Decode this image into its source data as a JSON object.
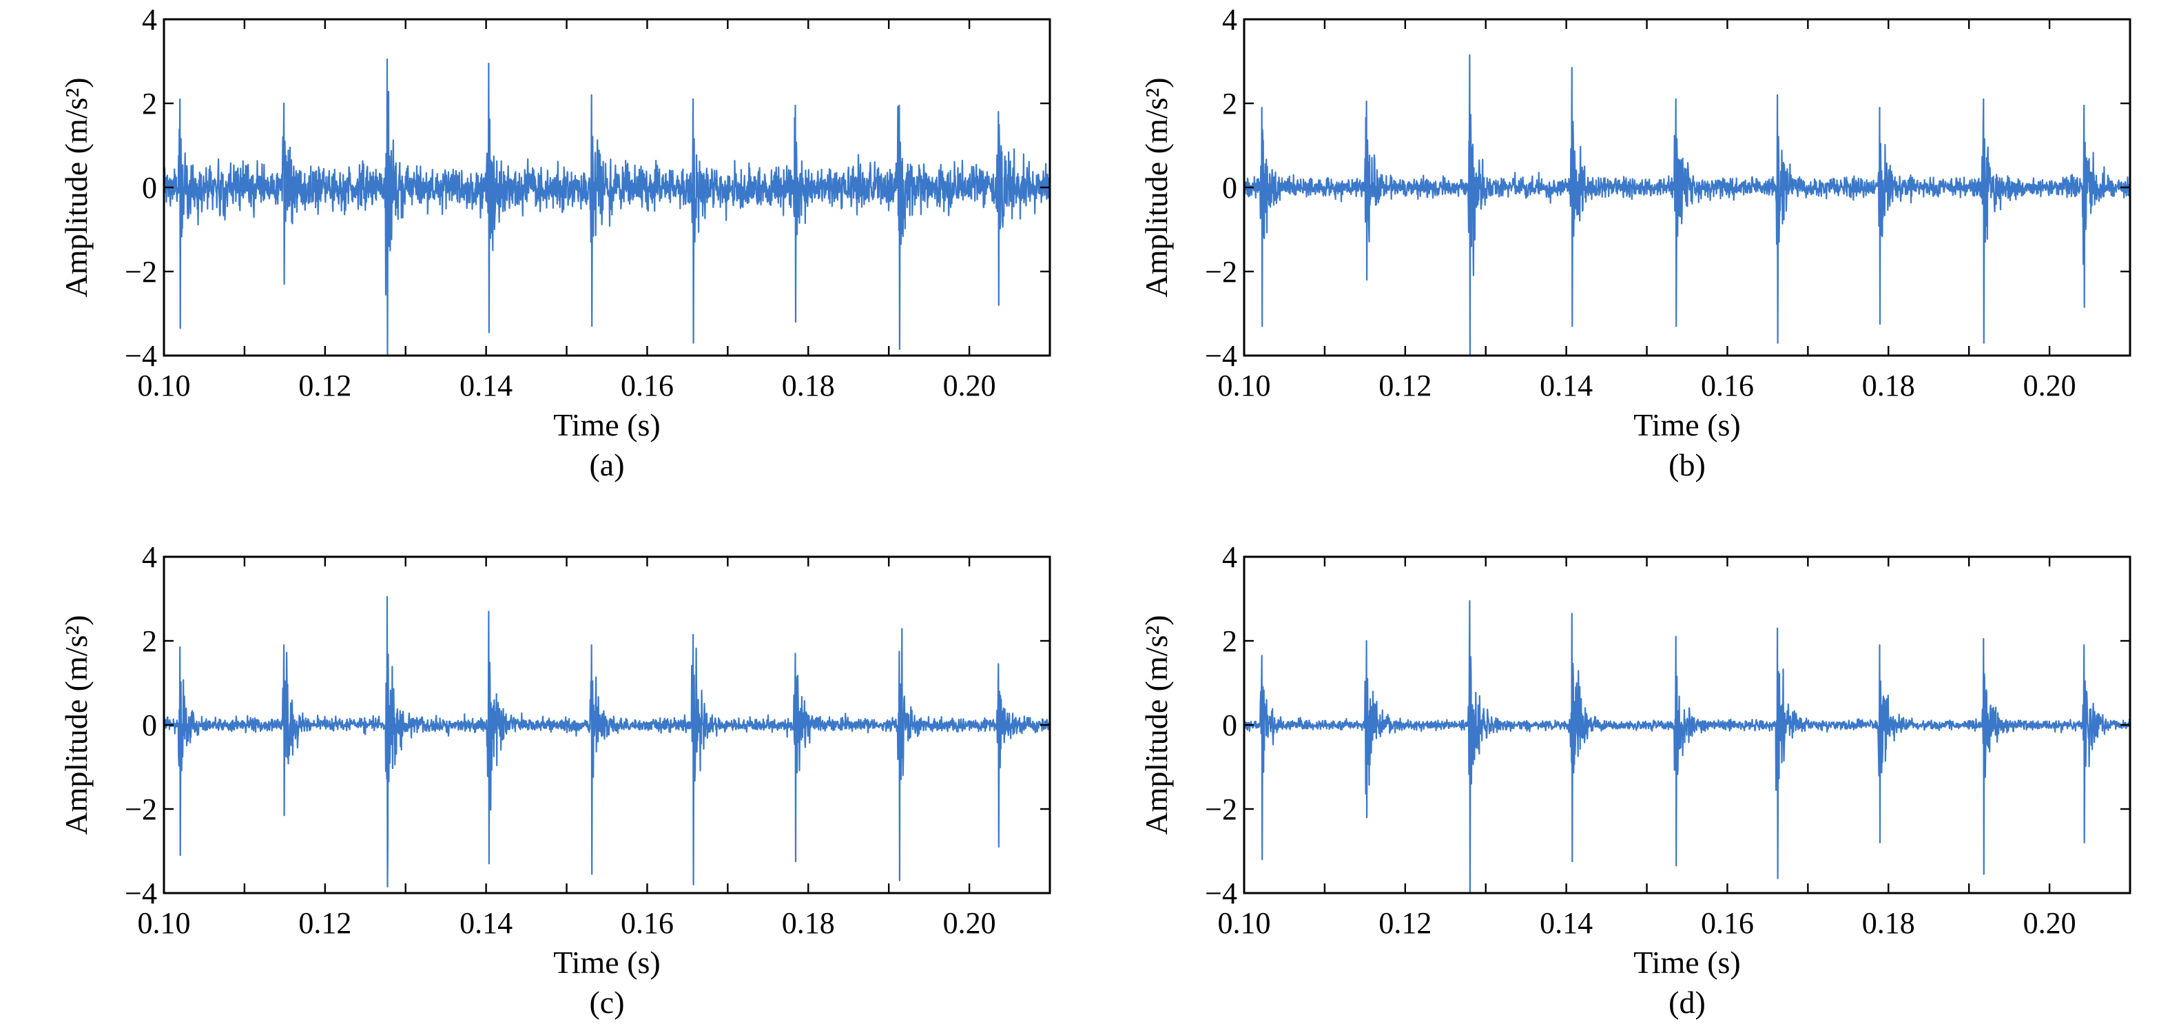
{
  "colors": {
    "signal": "#3b78c9",
    "axes": "#000000",
    "background": "#ffffff"
  },
  "chart_data": [
    {
      "type": "line",
      "panel_label": "(a)",
      "xlabel": "Time (s)",
      "ylabel": "Amplitude (m/s²)",
      "xlim": [
        0.1,
        0.21
      ],
      "ylim": [
        -4,
        4
      ],
      "xticks": [
        0.1,
        0.12,
        0.14,
        0.16,
        0.18,
        0.2
      ],
      "xticklabels": [
        "0.10",
        "0.12",
        "0.14",
        "0.16",
        "0.18",
        "0.20"
      ],
      "yticks": [
        -4,
        -2,
        0,
        2,
        4
      ],
      "yticklabels": [
        "−4",
        "−2",
        "0",
        "2",
        "4"
      ],
      "grid": false,
      "noise_level": 0.45,
      "impulses": [
        {
          "t": 0.102,
          "pos": 2.1,
          "neg": -3.35
        },
        {
          "t": 0.1149,
          "pos": 2.0,
          "neg": -2.3
        },
        {
          "t": 0.1277,
          "pos": 3.05,
          "neg": -4.0
        },
        {
          "t": 0.1403,
          "pos": 2.95,
          "neg": -3.45
        },
        {
          "t": 0.1531,
          "pos": 2.2,
          "neg": -3.3
        },
        {
          "t": 0.1657,
          "pos": 2.1,
          "neg": -3.7
        },
        {
          "t": 0.1784,
          "pos": 1.95,
          "neg": -3.2
        },
        {
          "t": 0.1913,
          "pos": 1.95,
          "neg": -3.85
        },
        {
          "t": 0.2036,
          "pos": 1.8,
          "neg": -2.8
        }
      ]
    },
    {
      "type": "line",
      "panel_label": "(b)",
      "xlabel": "Time (s)",
      "ylabel": "Amplitude (m/s²)",
      "xlim": [
        0.1,
        0.21
      ],
      "ylim": [
        -4,
        4
      ],
      "xticks": [
        0.1,
        0.12,
        0.14,
        0.16,
        0.18,
        0.2
      ],
      "xticklabels": [
        "0.10",
        "0.12",
        "0.14",
        "0.16",
        "0.18",
        "0.20"
      ],
      "yticks": [
        -4,
        -2,
        0,
        2,
        4
      ],
      "yticklabels": [
        "−4",
        "−2",
        "0",
        "2",
        "4"
      ],
      "grid": false,
      "noise_level": 0.2,
      "impulses": [
        {
          "t": 0.1022,
          "pos": 1.9,
          "neg": -3.3
        },
        {
          "t": 0.1152,
          "pos": 2.05,
          "neg": -2.2
        },
        {
          "t": 0.128,
          "pos": 3.15,
          "neg": -4.0
        },
        {
          "t": 0.1407,
          "pos": 2.85,
          "neg": -3.3
        },
        {
          "t": 0.1536,
          "pos": 2.1,
          "neg": -3.3
        },
        {
          "t": 0.1662,
          "pos": 2.2,
          "neg": -3.7
        },
        {
          "t": 0.1789,
          "pos": 1.9,
          "neg": -3.25
        },
        {
          "t": 0.1918,
          "pos": 2.1,
          "neg": -3.7
        },
        {
          "t": 0.2043,
          "pos": 1.95,
          "neg": -2.85
        }
      ]
    },
    {
      "type": "line",
      "panel_label": "(c)",
      "xlabel": "Time (s)",
      "ylabel": "Amplitude (m/s²)",
      "xlim": [
        0.1,
        0.21
      ],
      "ylim": [
        -4,
        4
      ],
      "xticks": [
        0.1,
        0.12,
        0.14,
        0.16,
        0.18,
        0.2
      ],
      "xticklabels": [
        "0.10",
        "0.12",
        "0.14",
        "0.16",
        "0.18",
        "0.20"
      ],
      "yticks": [
        -4,
        -2,
        0,
        2,
        4
      ],
      "yticklabels": [
        "−4",
        "−2",
        "0",
        "2",
        "4"
      ],
      "grid": false,
      "noise_level": 0.14,
      "impulses": [
        {
          "t": 0.102,
          "pos": 1.85,
          "neg": -3.1
        },
        {
          "t": 0.1149,
          "pos": 1.9,
          "neg": -2.15
        },
        {
          "t": 0.1277,
          "pos": 3.05,
          "neg": -3.85
        },
        {
          "t": 0.1403,
          "pos": 2.7,
          "neg": -3.3
        },
        {
          "t": 0.1531,
          "pos": 1.9,
          "neg": -3.55
        },
        {
          "t": 0.1657,
          "pos": 2.15,
          "neg": -3.8
        },
        {
          "t": 0.1784,
          "pos": 1.7,
          "neg": -3.25
        },
        {
          "t": 0.1913,
          "pos": 1.75,
          "neg": -3.7
        },
        {
          "t": 0.2036,
          "pos": 1.45,
          "neg": -2.9
        }
      ]
    },
    {
      "type": "line",
      "panel_label": "(d)",
      "xlabel": "Time (s)",
      "ylabel": "Amplitude (m/s²)",
      "xlim": [
        0.1,
        0.21
      ],
      "ylim": [
        -4,
        4
      ],
      "xticks": [
        0.1,
        0.12,
        0.14,
        0.16,
        0.18,
        0.2
      ],
      "xticklabels": [
        "0.10",
        "0.12",
        "0.14",
        "0.16",
        "0.18",
        "0.20"
      ],
      "yticks": [
        -4,
        -2,
        0,
        2,
        4
      ],
      "yticklabels": [
        "−4",
        "−2",
        "0",
        "2",
        "4"
      ],
      "grid": false,
      "noise_level": 0.1,
      "impulses": [
        {
          "t": 0.1022,
          "pos": 1.65,
          "neg": -3.2
        },
        {
          "t": 0.1152,
          "pos": 2.0,
          "neg": -2.2
        },
        {
          "t": 0.128,
          "pos": 2.95,
          "neg": -4.0
        },
        {
          "t": 0.1407,
          "pos": 2.65,
          "neg": -3.25
        },
        {
          "t": 0.1536,
          "pos": 2.1,
          "neg": -3.35
        },
        {
          "t": 0.1662,
          "pos": 2.3,
          "neg": -3.65
        },
        {
          "t": 0.1789,
          "pos": 1.9,
          "neg": -2.8
        },
        {
          "t": 0.1918,
          "pos": 2.05,
          "neg": -3.55
        },
        {
          "t": 0.2043,
          "pos": 1.9,
          "neg": -2.8
        }
      ]
    }
  ]
}
